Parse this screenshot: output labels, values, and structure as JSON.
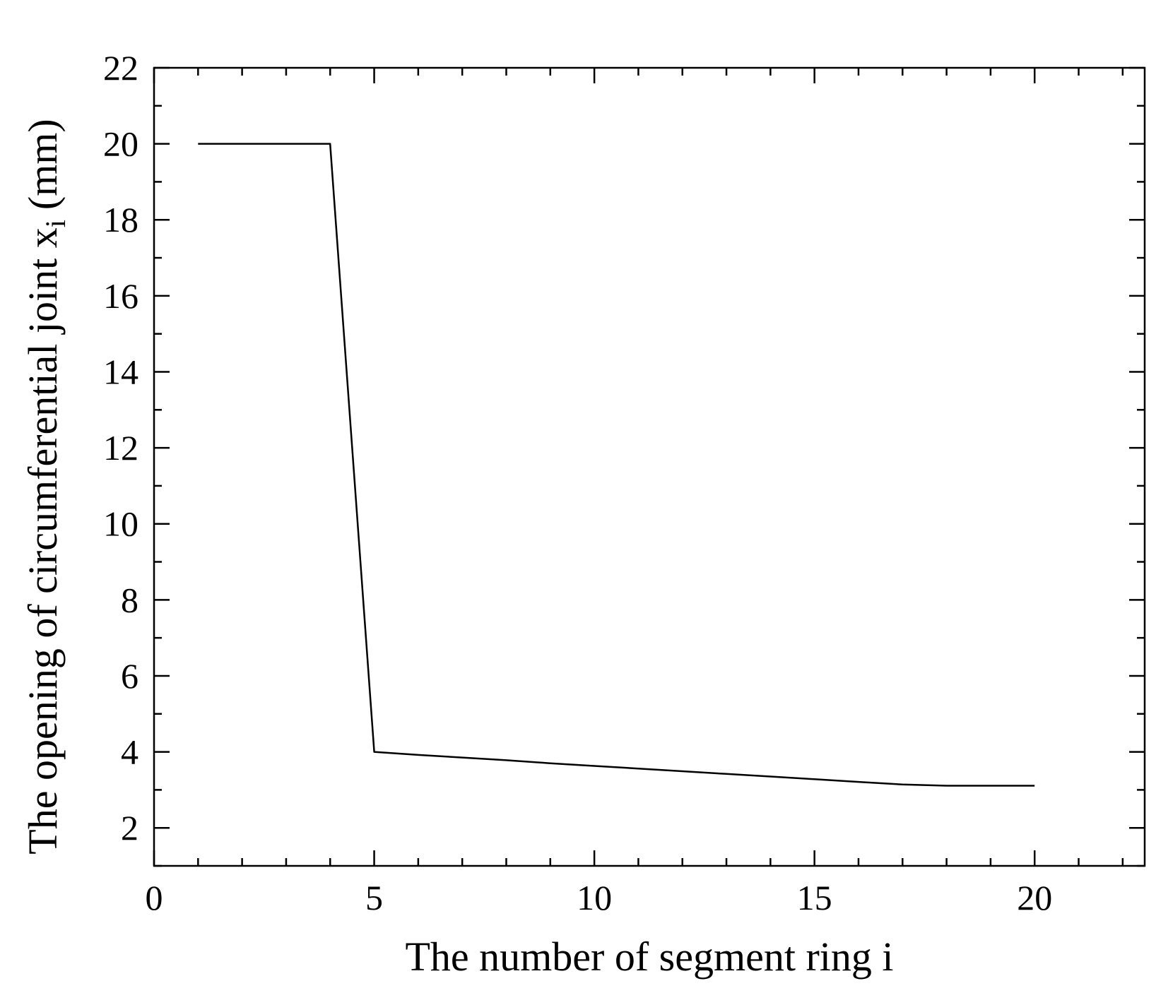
{
  "chart_data": {
    "type": "line",
    "title": "",
    "xlabel": "The number of segment ring i",
    "ylabel_main": "The opening of circumferential joint x",
    "ylabel_subscript": "i",
    "ylabel_unit": "(mm)",
    "xlim": [
      0,
      22.5
    ],
    "ylim": [
      1,
      22
    ],
    "xticks": [
      0,
      5,
      10,
      15,
      20
    ],
    "xtick_labels": [
      "0",
      "5",
      "10",
      "15",
      "20"
    ],
    "x_minor_step": 1,
    "yticks": [
      2,
      4,
      6,
      8,
      10,
      12,
      14,
      16,
      18,
      20,
      22
    ],
    "ytick_labels": [
      "2",
      "4",
      "6",
      "8",
      "10",
      "12",
      "14",
      "16",
      "18",
      "20",
      "22"
    ],
    "y_minor_step": 1,
    "grid": false,
    "legend": "none",
    "line_color": "#000000",
    "series": [
      {
        "x": [
          1,
          2,
          3,
          4,
          5,
          6,
          7,
          8,
          9,
          10,
          11,
          12,
          13,
          14,
          15,
          16,
          17,
          18,
          19,
          20
        ],
        "values": [
          20,
          20,
          20,
          20,
          4,
          3.92,
          3.85,
          3.78,
          3.7,
          3.63,
          3.56,
          3.49,
          3.42,
          3.35,
          3.28,
          3.21,
          3.14,
          3.11,
          3.11,
          3.11
        ]
      }
    ]
  }
}
